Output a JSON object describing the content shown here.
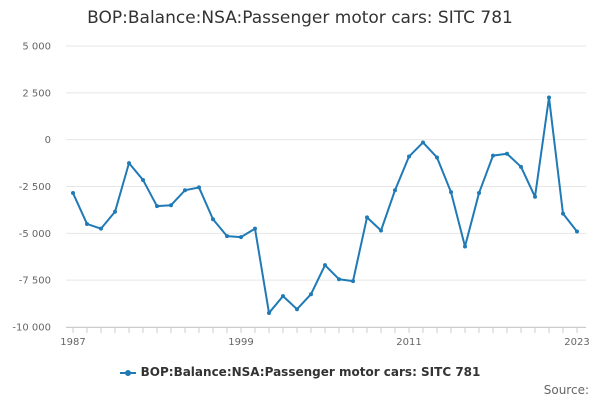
{
  "colors": {
    "series": "#1f7ab6",
    "grid": "#e6e6e6",
    "axis": "#cccccc",
    "text": "#333333",
    "muted": "#666666"
  },
  "chart_data": {
    "type": "line",
    "title": "BOP:Balance:NSA:Passenger motor cars: SITC 781",
    "xlabel": "",
    "ylabel": "",
    "xlim": [
      1987,
      2023
    ],
    "ylim": [
      -10000,
      5000
    ],
    "y_ticks": [
      5000,
      2500,
      0,
      -2500,
      -5000,
      -7500,
      -10000
    ],
    "y_tick_labels": [
      "5 000",
      "2 500",
      "0",
      "-2 500",
      "-5 000",
      "-7 500",
      "-10 000"
    ],
    "x_tick_labels": [
      "1987",
      "1999",
      "2011",
      "2023"
    ],
    "x_tick_values": [
      1987,
      1999,
      2011,
      2023
    ],
    "grid": true,
    "legend_position": "bottom",
    "source_label": "Source:",
    "series": [
      {
        "name": "BOP:Balance:NSA:Passenger motor cars: SITC 781",
        "x": [
          1987,
          1988,
          1989,
          1990,
          1991,
          1992,
          1993,
          1994,
          1995,
          1996,
          1997,
          1998,
          1999,
          2000,
          2001,
          2002,
          2003,
          2004,
          2005,
          2006,
          2007,
          2008,
          2009,
          2010,
          2011,
          2012,
          2013,
          2014,
          2015,
          2016,
          2017,
          2018,
          2019,
          2020,
          2021,
          2022,
          2023
        ],
        "values": [
          -2850,
          -4500,
          -4750,
          -3850,
          -1250,
          -2150,
          -3550,
          -3500,
          -2700,
          -2550,
          -4250,
          -5150,
          -5200,
          -4750,
          -9250,
          -8350,
          -9050,
          -8250,
          -6700,
          -7450,
          -7550,
          -4150,
          -4850,
          -2700,
          -900,
          -150,
          -950,
          -2800,
          -5700,
          -2850,
          -850,
          -750,
          -1450,
          -3050,
          2250,
          -3950,
          -4900
        ]
      }
    ]
  }
}
